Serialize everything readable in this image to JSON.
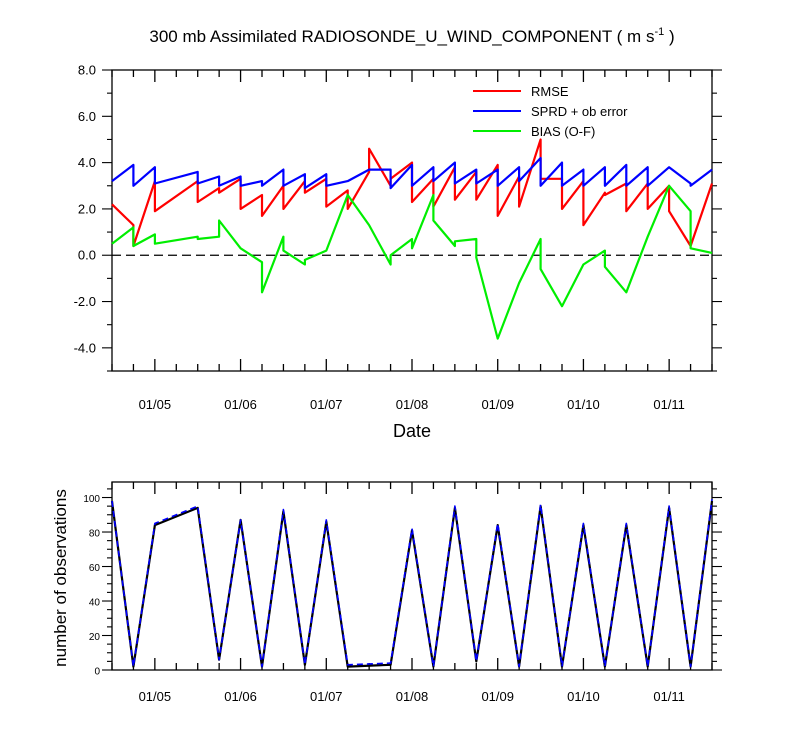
{
  "colors": {
    "rmse": "#ff0000",
    "sprd": "#0000ff",
    "bias": "#00ee00",
    "count_solid": "#000000",
    "count_dashed": "#0000ff",
    "axis": "#000000"
  },
  "chart_data": [
    {
      "type": "line",
      "title_main": "300 mb Assimilated RADIOSONDE_U_WIND_COMPONENT ( m s",
      "title_sup": "-1",
      "title_end": " )",
      "xlabel": "Date",
      "ylabel": "",
      "xlim": [
        0,
        14
      ],
      "ylim": [
        -5,
        8
      ],
      "y_ticks": [
        8,
        6,
        4,
        2,
        0,
        -2,
        -4
      ],
      "y_tick_labels": [
        "8.0",
        "6.0",
        "4.0",
        "2.0",
        "0.0",
        "-2.0",
        "-4.0"
      ],
      "x_ticks": [
        1,
        3,
        5,
        7,
        9,
        11,
        13
      ],
      "x_tick_labels": [
        "01/05",
        "01/06",
        "01/07",
        "01/08",
        "01/09",
        "01/10",
        "01/11"
      ],
      "reference_line": 0,
      "legend": [
        "RMSE",
        "SPRD + ob error",
        "BIAS (O-F)"
      ],
      "series": [
        {
          "name": "RMSE",
          "x": [
            0,
            0.5,
            0.5,
            1,
            1,
            2,
            2,
            2.5,
            2.5,
            3,
            3,
            3.5,
            3.5,
            4,
            4,
            4.5,
            4.5,
            5,
            5,
            5.5,
            5.5,
            6,
            6,
            6.5,
            6.5,
            7,
            7,
            7.5,
            7.5,
            8,
            8,
            8.5,
            8.5,
            9,
            9,
            9.5,
            9.5,
            10,
            10,
            10.5,
            10.5,
            11,
            11,
            11.5,
            11.5,
            12,
            12,
            12.5,
            12.5,
            13,
            13,
            13.5,
            14
          ],
          "values": [
            2.2,
            1.3,
            0.4,
            3.2,
            1.9,
            3.2,
            2.3,
            2.9,
            2.7,
            3.3,
            2.0,
            2.6,
            1.7,
            3.0,
            2.0,
            3.2,
            2.7,
            3.3,
            2.1,
            2.8,
            2.0,
            3.6,
            4.6,
            3.0,
            3.3,
            4.0,
            2.3,
            3.3,
            2.1,
            3.8,
            2.4,
            3.6,
            2.4,
            3.9,
            1.7,
            3.4,
            2.1,
            5.0,
            3.3,
            3.3,
            2.0,
            3.2,
            1.3,
            2.7,
            2.6,
            3.1,
            1.9,
            3.1,
            2.0,
            3.0,
            1.9,
            0.4,
            3.1
          ]
        },
        {
          "name": "SPRD + ob error",
          "x": [
            0,
            0.5,
            0.5,
            1,
            1,
            2,
            2,
            2.5,
            2.5,
            3,
            3,
            3.5,
            3.5,
            4,
            4,
            4.5,
            4.5,
            5,
            5,
            5.5,
            6,
            6.5,
            6.5,
            7,
            7,
            7.5,
            7.5,
            8,
            8,
            8.5,
            8.5,
            9,
            9,
            9.5,
            9.5,
            10,
            10,
            10.5,
            10.5,
            11,
            11,
            11.5,
            11.5,
            12,
            12,
            12.5,
            12.5,
            13,
            13.5,
            13.5,
            14
          ],
          "values": [
            3.2,
            3.9,
            3.0,
            3.8,
            3.1,
            3.6,
            3.1,
            3.4,
            3.0,
            3.4,
            3.0,
            3.2,
            3.0,
            3.7,
            3.0,
            3.5,
            2.9,
            3.5,
            3.0,
            3.2,
            3.7,
            3.7,
            2.9,
            3.9,
            3.0,
            3.8,
            3.2,
            4.0,
            3.1,
            3.7,
            3.1,
            3.7,
            3.0,
            3.8,
            3.2,
            4.2,
            3.0,
            4.0,
            3.0,
            3.7,
            3.0,
            3.8,
            3.0,
            3.9,
            3.0,
            3.8,
            3.0,
            3.8,
            3.1,
            3.0,
            3.7
          ]
        },
        {
          "name": "BIAS (O-F)",
          "x": [
            0,
            0.5,
            0.5,
            1,
            1,
            2,
            2,
            2.5,
            2.5,
            3,
            3.5,
            3.5,
            4,
            4,
            4.5,
            4.5,
            5,
            5.5,
            6,
            6.5,
            6.5,
            7,
            7,
            7.5,
            7.5,
            8,
            8,
            8.5,
            8.5,
            9,
            9.5,
            10,
            10,
            10.5,
            11,
            11.5,
            11.5,
            12,
            12.5,
            13,
            13.5,
            13.5,
            14
          ],
          "values": [
            0.5,
            1.2,
            0.4,
            0.9,
            0.5,
            0.8,
            0.7,
            0.8,
            1.5,
            0.3,
            -0.3,
            -1.6,
            0.8,
            0.2,
            -0.4,
            -0.2,
            0.2,
            2.6,
            1.3,
            -0.4,
            0.0,
            0.7,
            0.3,
            2.6,
            1.5,
            0.4,
            0.6,
            0.7,
            -0.1,
            -3.6,
            -1.2,
            0.7,
            -0.6,
            -2.2,
            -0.4,
            0.2,
            -0.5,
            -1.6,
            0.8,
            3.0,
            1.9,
            0.3,
            0.1
          ]
        }
      ]
    },
    {
      "type": "line",
      "title": "",
      "xlabel": "",
      "ylabel": "number of observations",
      "xlim": [
        0,
        14
      ],
      "ylim": [
        0,
        109
      ],
      "y_ticks": [
        0,
        20,
        40,
        60,
        80,
        100
      ],
      "y_tick_labels": [
        "0",
        "20",
        "40",
        "60",
        "80",
        "100"
      ],
      "x_ticks": [
        1,
        3,
        5,
        7,
        9,
        11,
        13
      ],
      "x_tick_labels": [
        "01/05",
        "01/06",
        "01/07",
        "01/08",
        "01/09",
        "01/10",
        "01/11"
      ],
      "series": [
        {
          "name": "number of observations (solid)",
          "x": [
            0,
            0.5,
            1,
            2,
            2.5,
            3,
            3.5,
            4,
            4.5,
            5,
            5.5,
            6.5,
            7,
            7.5,
            8,
            8.5,
            9,
            9.5,
            10,
            10.5,
            11,
            11.5,
            12,
            12.5,
            13,
            13.5,
            14
          ],
          "values": [
            98,
            2,
            84,
            94,
            6,
            87,
            2,
            92,
            3,
            86,
            2,
            3,
            81,
            2,
            94,
            5,
            84,
            2,
            95,
            2,
            84,
            2,
            84,
            2,
            94,
            2,
            98
          ]
        },
        {
          "name": "number of observations (dashed)",
          "x": [
            0,
            0.5,
            1,
            2,
            2.5,
            3,
            3.5,
            4,
            4.5,
            5,
            5.5,
            6.5,
            7,
            7.5,
            8,
            8.5,
            9,
            9.5,
            10,
            10.5,
            11,
            11.5,
            12,
            12.5,
            13,
            13.5,
            14
          ],
          "values": [
            98,
            2,
            85,
            95,
            6,
            87,
            2,
            93,
            3,
            87,
            3,
            4,
            82,
            2,
            95,
            5,
            85,
            2,
            96,
            2,
            85,
            2,
            85,
            2,
            95,
            2,
            99
          ]
        }
      ]
    }
  ]
}
